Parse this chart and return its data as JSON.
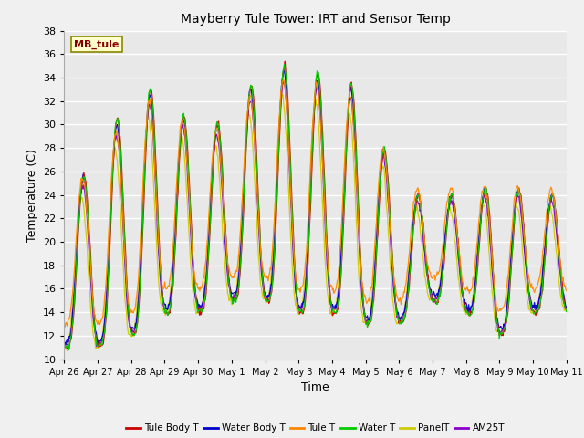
{
  "title": "Mayberry Tule Tower: IRT and Sensor Temp",
  "xlabel": "Time",
  "ylabel": "Temperature (C)",
  "ylim": [
    10,
    38
  ],
  "yticks": [
    10,
    12,
    14,
    16,
    18,
    20,
    22,
    24,
    26,
    28,
    30,
    32,
    34,
    36,
    38
  ],
  "x_labels": [
    "Apr 26",
    "Apr 27",
    "Apr 28",
    "Apr 29",
    "Apr 30",
    "May 1",
    "May 2",
    "May 3",
    "May 4",
    "May 5",
    "May 6",
    "May 7",
    "May 8",
    "May 9",
    "May 10",
    "May 11"
  ],
  "series_colors": {
    "Tule Body T": "#cc0000",
    "Water Body T": "#0000cc",
    "Tule T": "#ff8800",
    "Water T": "#00cc00",
    "PanelT": "#cccc00",
    "AM25T": "#8800cc"
  },
  "legend_labels": [
    "Tule Body T",
    "Water Body T",
    "Tule T",
    "Water T",
    "PanelT",
    "AM25T"
  ],
  "annotation_text": "MB_tule",
  "annotation_color": "#880000",
  "annotation_bg": "#ffffcc",
  "annotation_border": "#888800",
  "plot_bg": "#e8e8e8",
  "grid_color": "#ffffff",
  "fig_bg": "#f0f0f0"
}
